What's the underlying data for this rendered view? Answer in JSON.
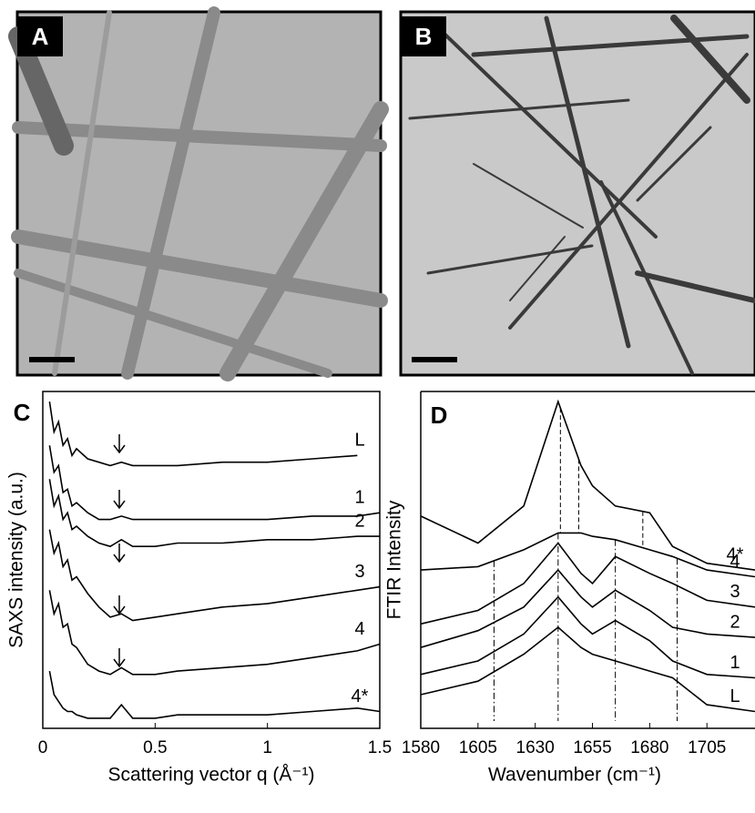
{
  "images": [
    {
      "label": "A"
    },
    {
      "label": "B"
    }
  ],
  "chart_data": [
    {
      "type": "line",
      "panel_label": "C",
      "x_label": "Scattering vector q (Å⁻¹)",
      "y_label": "SAXS intensity (a.u.)",
      "color": "#000000",
      "x": [
        0.03,
        0.05,
        0.07,
        0.09,
        0.11,
        0.13,
        0.15,
        0.2,
        0.25,
        0.3,
        0.35,
        0.4,
        0.5,
        0.6,
        0.8,
        1.0,
        1.2,
        1.4,
        1.5
      ],
      "xlim": [
        0,
        1.5
      ],
      "xticks": [
        0,
        0.5,
        1,
        1.5
      ],
      "ylim": [
        0,
        100
      ],
      "series": [
        {
          "name": "L",
          "values": [
            97,
            88,
            91,
            84,
            86,
            81,
            83,
            80,
            79,
            78,
            79,
            78,
            78,
            78,
            79,
            79,
            80,
            81,
            null
          ]
        },
        {
          "name": "1",
          "values": [
            84,
            76,
            78,
            70,
            71,
            66,
            67,
            64,
            62,
            62,
            63,
            62,
            62,
            62,
            62,
            62,
            63,
            63,
            64
          ]
        },
        {
          "name": "2",
          "values": [
            74,
            66,
            69,
            62,
            64,
            59,
            60,
            57,
            55,
            54,
            56,
            54,
            54,
            55,
            55,
            56,
            56,
            57,
            57
          ]
        },
        {
          "name": "3",
          "values": [
            59,
            52,
            55,
            48,
            50,
            44,
            45,
            40,
            36,
            33,
            34,
            32,
            33,
            34,
            36,
            37,
            39,
            41,
            42
          ]
        },
        {
          "name": "4",
          "values": [
            41,
            34,
            37,
            30,
            31,
            25,
            24,
            19,
            17,
            16,
            18,
            16,
            16,
            17,
            18,
            19,
            21,
            23,
            25
          ]
        },
        {
          "name": "4*",
          "values": [
            17,
            10,
            8,
            6,
            5,
            5,
            4,
            3,
            3,
            3,
            7,
            3,
            3,
            4,
            4,
            4,
            5,
            6,
            5
          ]
        }
      ]
    },
    {
      "type": "line",
      "panel_label": "D",
      "x_label": "Wavenumber (cm⁻¹)",
      "y_label": "FTIR Intensity",
      "color": "#000000",
      "x": [
        1580,
        1605,
        1625,
        1640,
        1650,
        1655,
        1665,
        1680,
        1690,
        1705,
        1726
      ],
      "xlim": [
        1580,
        1726
      ],
      "xticks": [
        1580,
        1605,
        1630,
        1655,
        1680,
        1705
      ],
      "ylim": [
        0,
        100
      ],
      "dashed_lines": [
        1641,
        1649,
        1677
      ],
      "dashdot_lines": [
        1612,
        1640,
        1665,
        1692
      ],
      "series": [
        {
          "name": "4*",
          "values": [
            63,
            55,
            66,
            97,
            78,
            72,
            66,
            64,
            54,
            49,
            47
          ]
        },
        {
          "name": "4",
          "values": [
            47,
            48,
            53,
            58,
            58,
            57,
            56,
            53,
            51,
            47,
            45
          ]
        },
        {
          "name": "3",
          "values": [
            31,
            35,
            43,
            55,
            46,
            43,
            51,
            46,
            43,
            38,
            36
          ]
        },
        {
          "name": "2",
          "values": [
            24,
            29,
            36,
            47,
            39,
            36,
            41,
            35,
            30,
            28,
            27
          ]
        },
        {
          "name": "1",
          "values": [
            16,
            20,
            28,
            39,
            31,
            28,
            32,
            26,
            20,
            16,
            15
          ]
        },
        {
          "name": "L",
          "values": [
            10,
            14,
            22,
            30,
            24,
            22,
            20,
            17,
            15,
            7,
            5
          ]
        }
      ]
    }
  ]
}
